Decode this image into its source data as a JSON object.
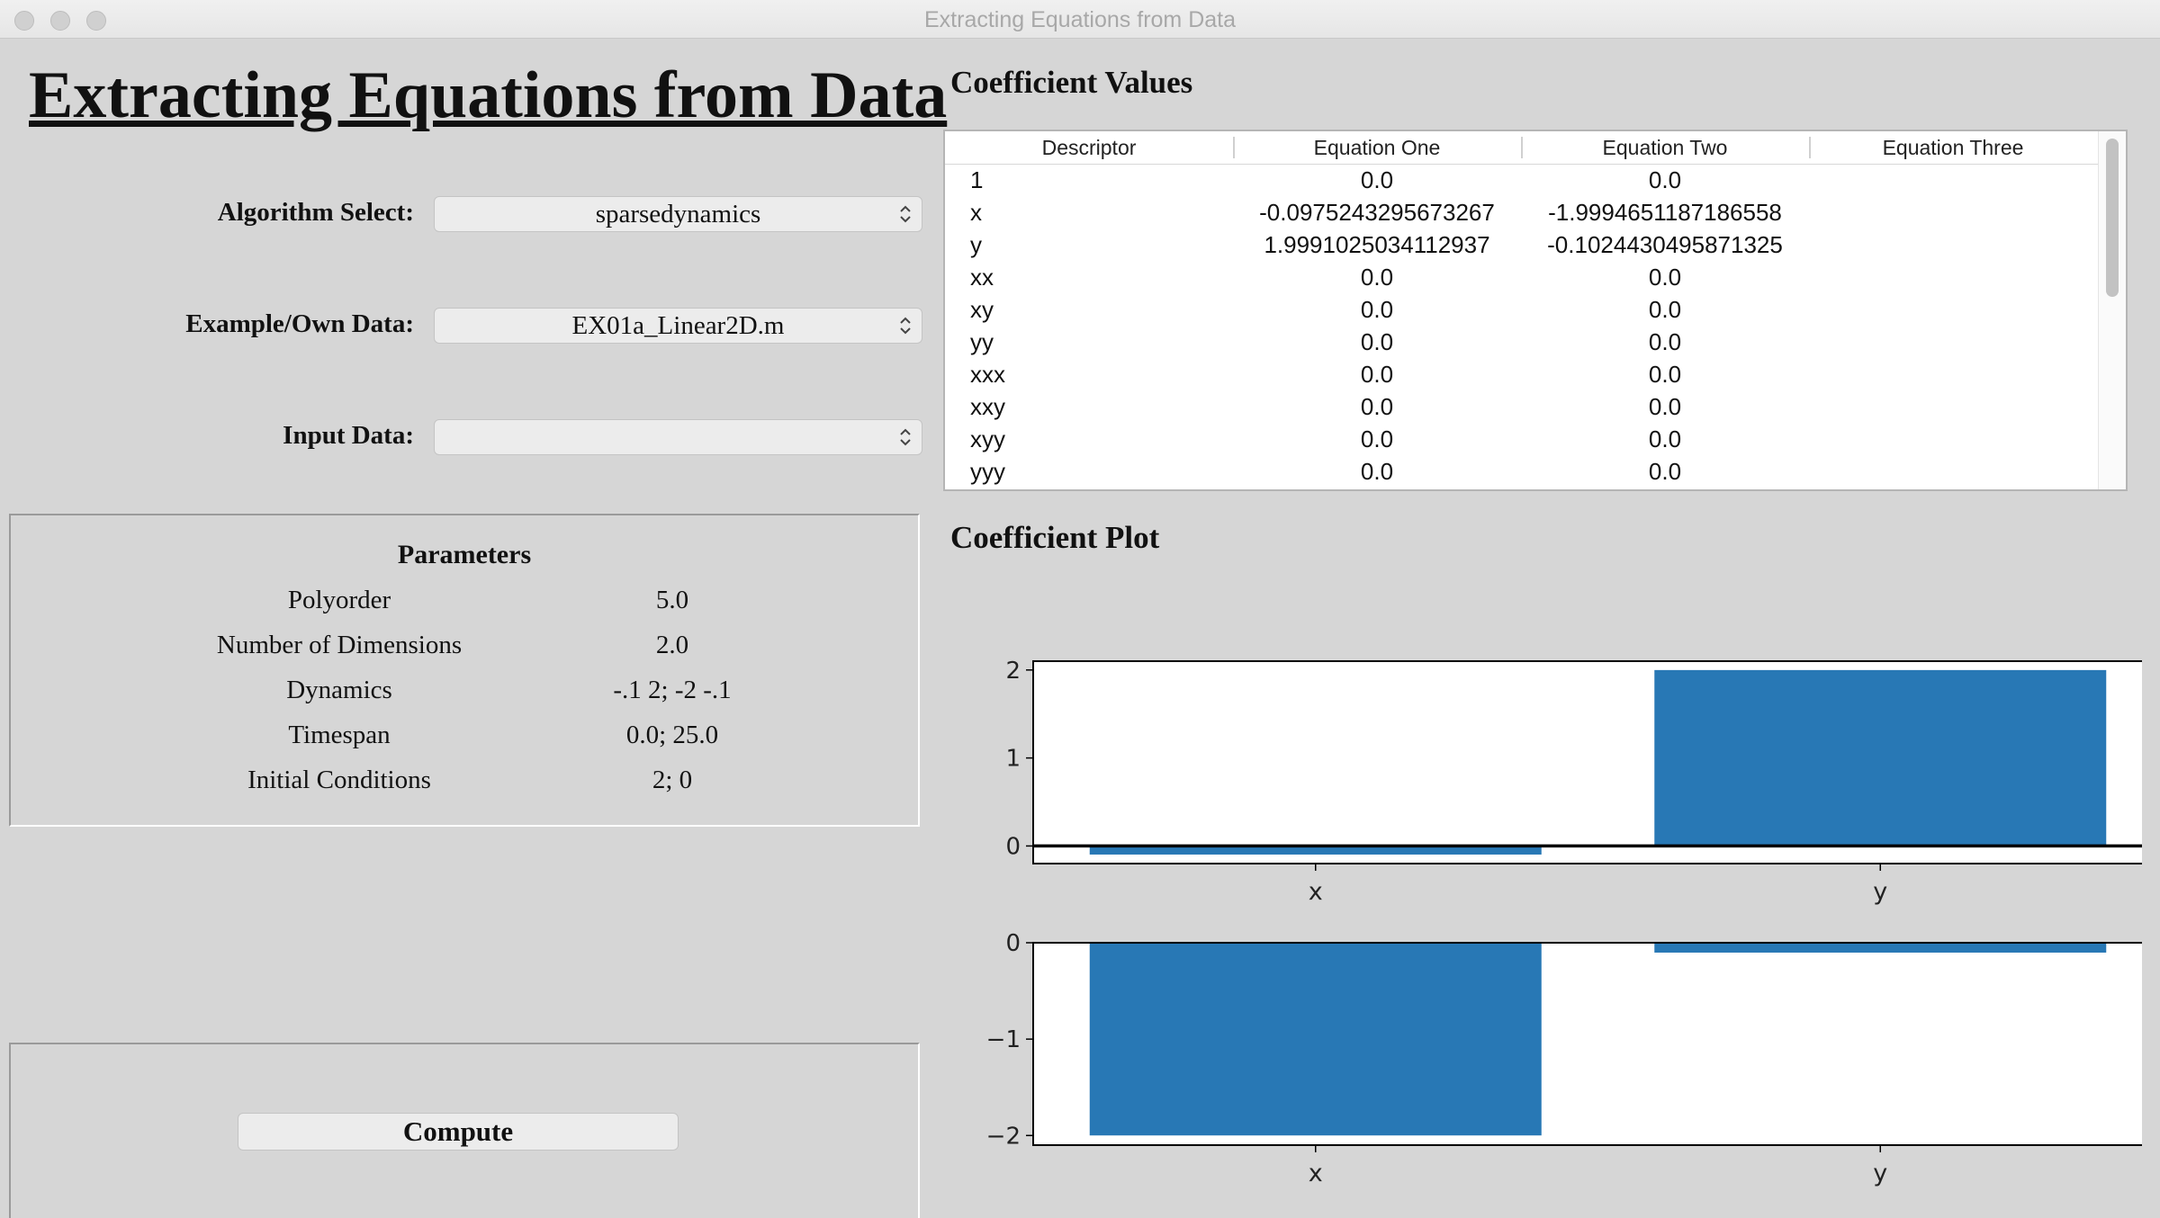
{
  "window": {
    "title": "Extracting Equations from Data"
  },
  "app_title": "Extracting Equations from Data",
  "form": {
    "algorithm": {
      "label": "Algorithm Select:",
      "value": "sparsedynamics"
    },
    "example": {
      "label": "Example/Own Data:",
      "value": "EX01a_Linear2D.m"
    },
    "input": {
      "label": "Input Data:",
      "value": ""
    }
  },
  "parameters": {
    "title": "Parameters",
    "rows": [
      {
        "name": "Polyorder",
        "value": "5.0"
      },
      {
        "name": "Number of Dimensions",
        "value": "2.0"
      },
      {
        "name": "Dynamics",
        "value": "-.1 2; -2 -.1"
      },
      {
        "name": "Timespan",
        "value": "0.0; 25.0"
      },
      {
        "name": "Initial Conditions",
        "value": "2; 0"
      }
    ]
  },
  "compute": {
    "label": "Compute"
  },
  "coefficients": {
    "title": "Coefficient Values",
    "headers": [
      "Descriptor",
      "Equation One",
      "Equation Two",
      "Equation Three"
    ],
    "rows": [
      [
        "1",
        "0.0",
        "0.0",
        ""
      ],
      [
        "x",
        "-0.0975243295673267",
        "-1.9994651187186558",
        ""
      ],
      [
        "y",
        "1.9991025034112937",
        "-0.1024430495871325",
        ""
      ],
      [
        "xx",
        "0.0",
        "0.0",
        ""
      ],
      [
        "xy",
        "0.0",
        "0.0",
        ""
      ],
      [
        "yy",
        "0.0",
        "0.0",
        ""
      ],
      [
        "xxx",
        "0.0",
        "0.0",
        ""
      ],
      [
        "xxy",
        "0.0",
        "0.0",
        ""
      ],
      [
        "xyy",
        "0.0",
        "0.0",
        ""
      ],
      [
        "yyy",
        "0.0",
        "0.0",
        ""
      ]
    ]
  },
  "plot": {
    "title": "Coefficient Plot"
  },
  "chart_data": [
    {
      "type": "bar",
      "title": "",
      "categories": [
        "x",
        "y"
      ],
      "values": [
        -0.0975243295673267,
        1.9991025034112937
      ],
      "color": "#2878b5",
      "ylim": [
        -0.2,
        2.1
      ],
      "yticks": [
        0,
        1,
        2
      ],
      "zero_line": true
    },
    {
      "type": "bar",
      "title": "",
      "categories": [
        "x",
        "y"
      ],
      "values": [
        -1.9994651187186558,
        -0.1024430495871325
      ],
      "color": "#2878b5",
      "ylim": [
        -2.1,
        0
      ],
      "yticks": [
        -2,
        -1,
        0
      ],
      "zero_line": false
    }
  ]
}
